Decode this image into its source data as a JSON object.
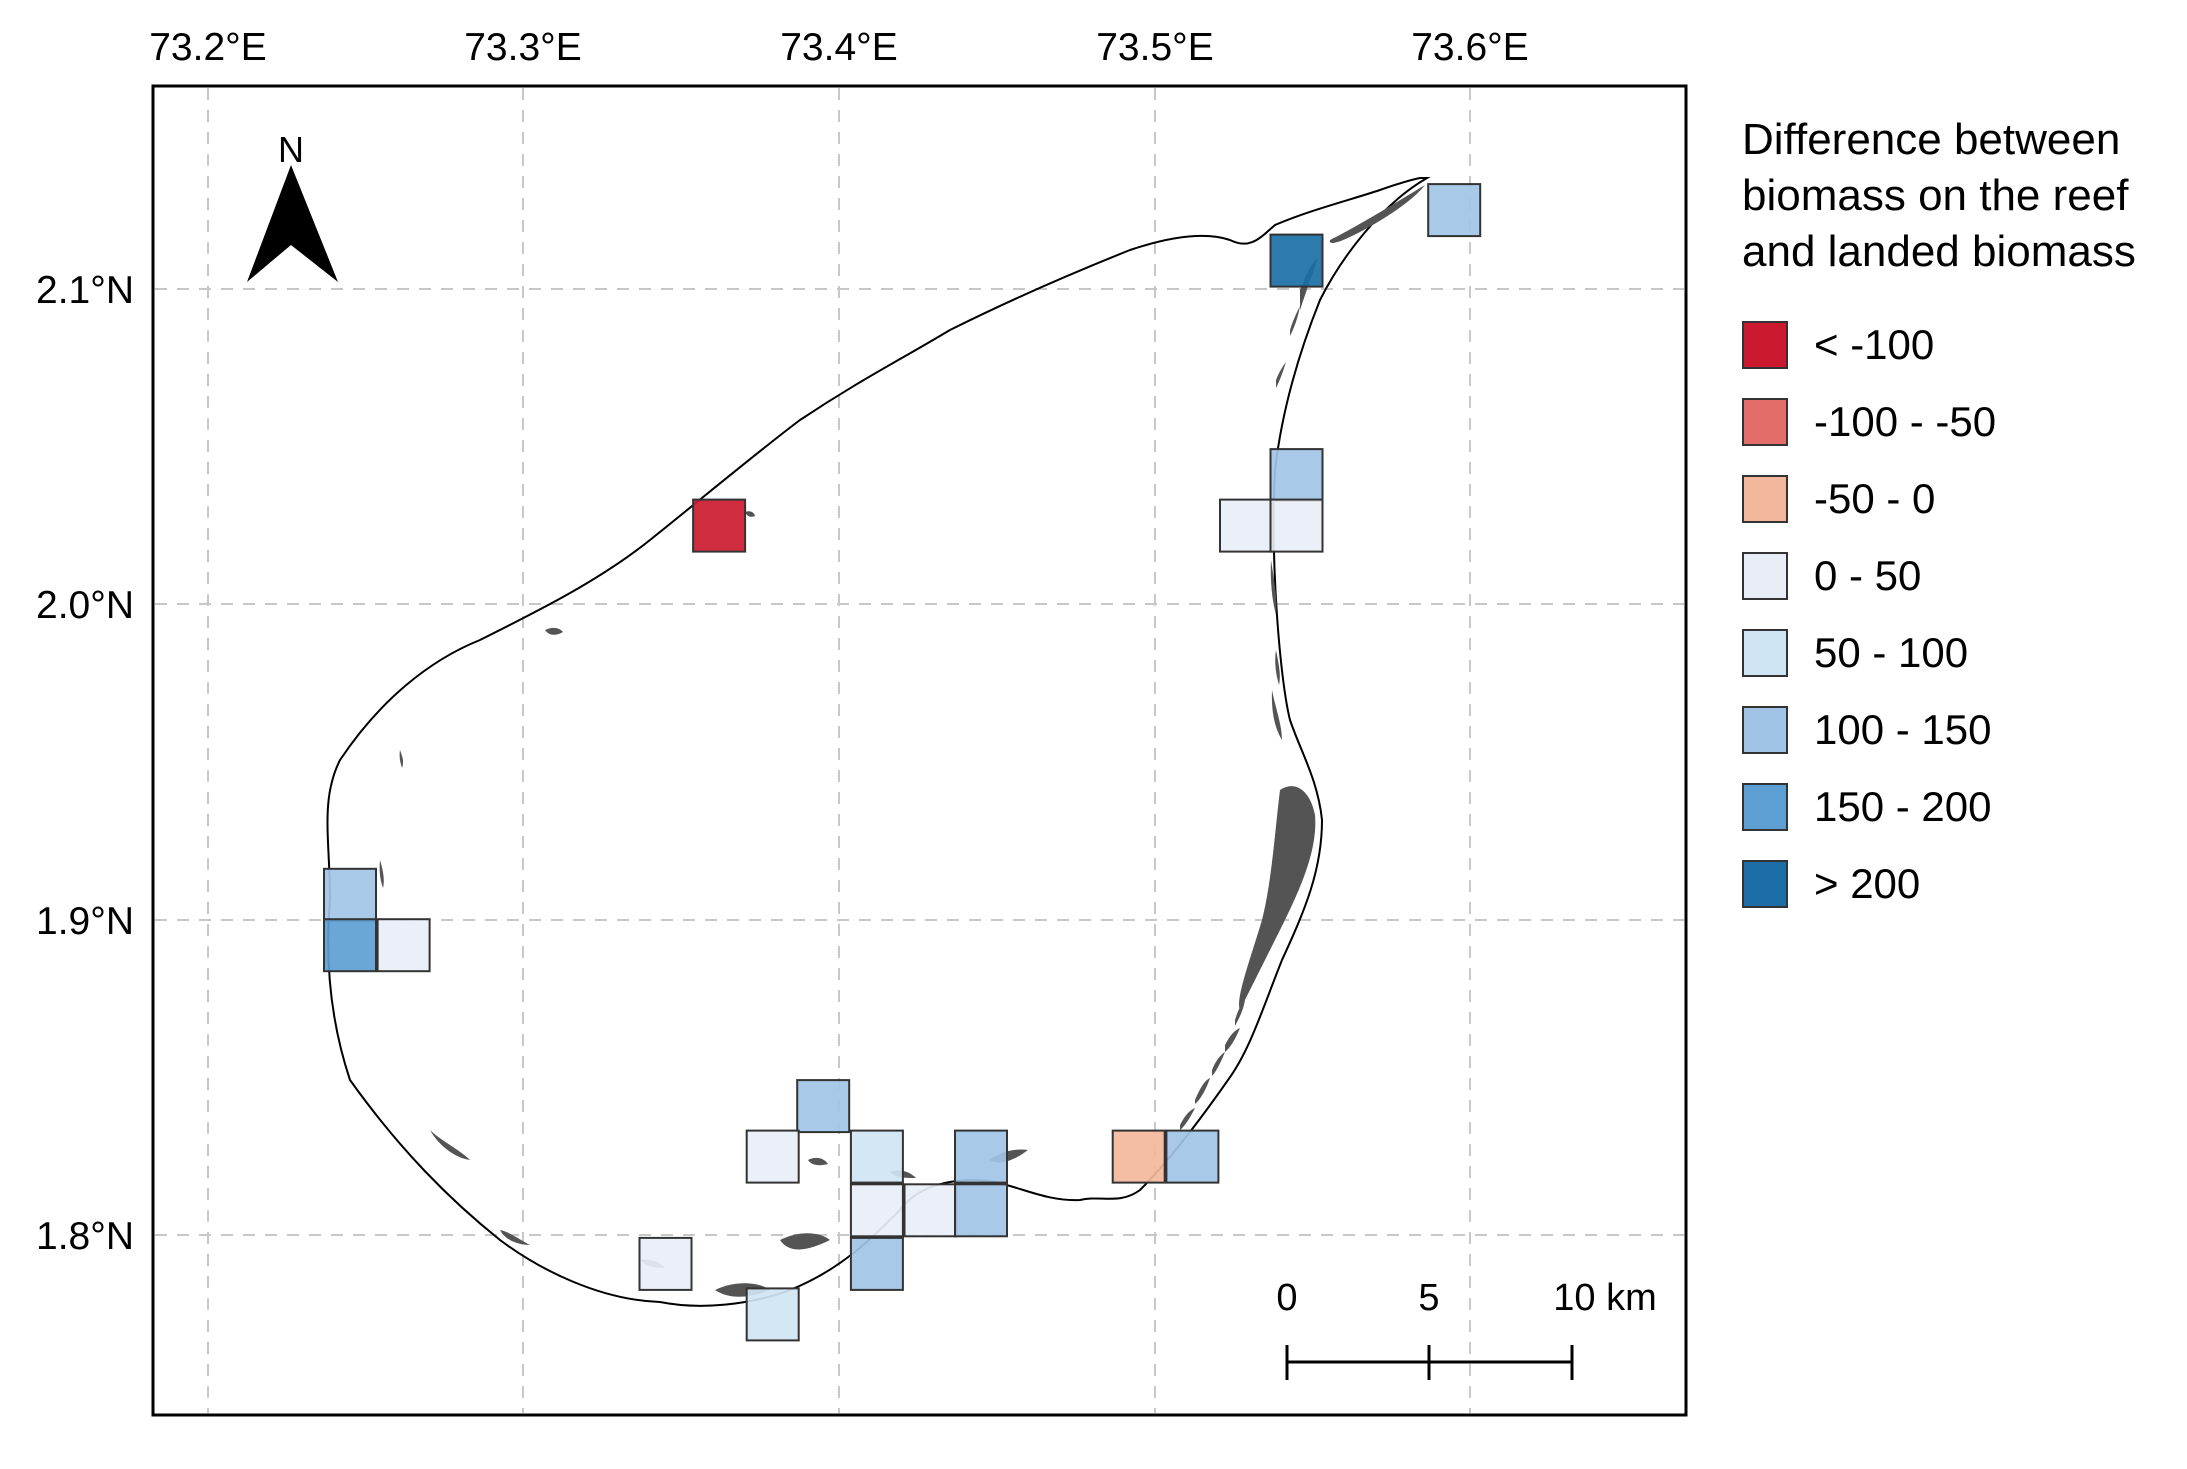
{
  "map": {
    "x_ticks": [
      "73.2°E",
      "73.3°E",
      "73.4°E",
      "73.5°E",
      "73.6°E"
    ],
    "y_ticks": [
      "2.1°N",
      "2.0°N",
      "1.9°N",
      "1.8°N"
    ],
    "north_label": "N"
  },
  "legend": {
    "title": "Difference between\nbiomass on the reef\nand landed biomass",
    "items": [
      {
        "label": "< -100",
        "color": "#cb1a2f"
      },
      {
        "label": "-100 - -50",
        "color": "#e36d68"
      },
      {
        "label": "-50 - 0",
        "color": "#f2b89c"
      },
      {
        "label": "0 - 50",
        "color": "#e9eef6"
      },
      {
        "label": "50 - 100",
        "color": "#d0e5f3"
      },
      {
        "label": "100 - 150",
        "color": "#a1c4e6"
      },
      {
        "label": "150 - 200",
        "color": "#5e9fd3"
      },
      {
        "label": "> 200",
        "color": "#1b6fa6"
      }
    ]
  },
  "scale_bar": {
    "labels": [
      "0",
      "5",
      "10 km"
    ]
  },
  "cells": [
    {
      "lon": 73.595,
      "lat": 2.125,
      "class": "100 - 150"
    },
    {
      "lon": 73.545,
      "lat": 2.109,
      "class": "> 200"
    },
    {
      "lon": 73.545,
      "lat": 2.041,
      "class": "100 - 150"
    },
    {
      "lon": 73.529,
      "lat": 2.025,
      "class": "0 - 50"
    },
    {
      "lon": 73.545,
      "lat": 2.025,
      "class": "0 - 50"
    },
    {
      "lon": 73.362,
      "lat": 2.025,
      "class": "< -100"
    },
    {
      "lon": 73.245,
      "lat": 1.908,
      "class": "100 - 150"
    },
    {
      "lon": 73.245,
      "lat": 1.892,
      "class": "150 - 200"
    },
    {
      "lon": 73.262,
      "lat": 1.892,
      "class": "0 - 50"
    },
    {
      "lon": 73.395,
      "lat": 1.841,
      "class": "100 - 150"
    },
    {
      "lon": 73.379,
      "lat": 1.825,
      "class": "0 - 50"
    },
    {
      "lon": 73.412,
      "lat": 1.825,
      "class": "50 - 100"
    },
    {
      "lon": 73.445,
      "lat": 1.825,
      "class": "100 - 150"
    },
    {
      "lon": 73.412,
      "lat": 1.808,
      "class": "0 - 50"
    },
    {
      "lon": 73.429,
      "lat": 1.808,
      "class": "0 - 50"
    },
    {
      "lon": 73.445,
      "lat": 1.808,
      "class": "100 - 150"
    },
    {
      "lon": 73.412,
      "lat": 1.791,
      "class": "100 - 150"
    },
    {
      "lon": 73.345,
      "lat": 1.791,
      "class": "0 - 50"
    },
    {
      "lon": 73.379,
      "lat": 1.775,
      "class": "50 - 100"
    },
    {
      "lon": 73.495,
      "lat": 1.825,
      "class": "-50 - 0"
    },
    {
      "lon": 73.512,
      "lat": 1.825,
      "class": "100 - 150"
    }
  ]
}
